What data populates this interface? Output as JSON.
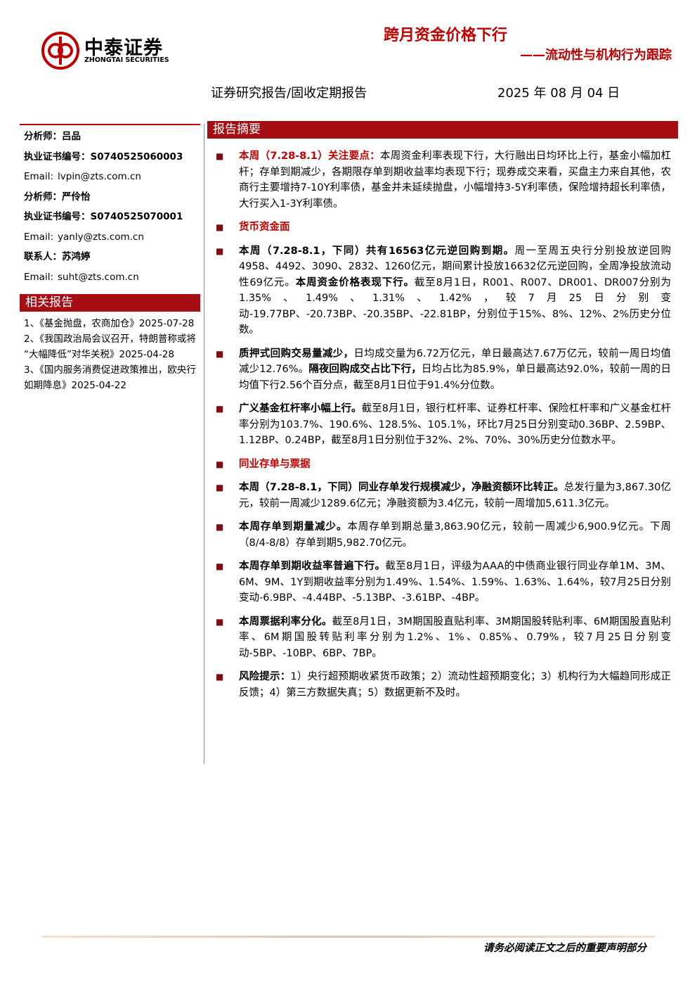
{
  "logo": {
    "name": "中泰证券",
    "sub": "ZHONGTAI SECURITIES"
  },
  "header": {
    "title": "跨月资金价格下行",
    "subtitle": "——流动性与机构行为跟踪",
    "report_type": "证券研究报告/固收定期报告",
    "date": "2025 年 08 月 04 日"
  },
  "sidebar": {
    "contacts": [
      {
        "label": "分析师：",
        "value": "吕品"
      },
      {
        "label": "执业证书编号：",
        "value": "S0740525060003"
      },
      {
        "label": "Email:",
        "value": "lvpin@zts.com.cn"
      },
      {
        "label": "分析师：",
        "value": "严伶怡"
      },
      {
        "label": "执业证书编号：",
        "value": "S0740525070001"
      },
      {
        "label": "Email:",
        "value": "yanly@zts.com.cn"
      },
      {
        "label": "联系人：",
        "value": "苏鸿婷"
      },
      {
        "label": "Email:",
        "value": "suht@zts.com.cn"
      }
    ],
    "related_title": "相关报告",
    "related": [
      "1、《基金抛盘，农商加仓》2025-07-28",
      "2、《我国政治局会议召开，特朗普称或将“大幅降低”对华关税》2025-04-28",
      "3、《国内服务消费促进政策推出，欧央行如期降息》2025-04-22"
    ]
  },
  "summary": {
    "title": "报告摘要",
    "items": [
      {
        "heading": false,
        "runs": [
          {
            "text": "本周（7.28-8.1）关注要点：",
            "bold": true,
            "red": true
          },
          {
            "text": "本周资金利率表现下行，大行融出日均环比上行，基金小幅加杠杆；存单到期减少，各期限存单到期收益率均表现下行；现券成交来看，买盘主力来自其他，农商行主要增持7-10Y利率债，基金并未延续抛盘，小幅增持3-5Y利率债，保险增持超长利率债，大行买入1-3Y利率债。",
            "bold": false,
            "red": false
          }
        ]
      },
      {
        "heading": true,
        "runs": [
          {
            "text": "货币资金面",
            "bold": true,
            "red": true
          }
        ]
      },
      {
        "heading": false,
        "runs": [
          {
            "text": "本周（7.28-8.1，下同）共有16563亿元逆回购到期。",
            "bold": true,
            "red": false
          },
          {
            "text": "周一至周五央行分别投放逆回购4958、4492、3090、2832、1260亿元，期间累计投放16632亿元逆回购，全周净投放流动性69亿元。",
            "bold": false,
            "red": false
          },
          {
            "text": "本周资金价格表现下行。",
            "bold": true,
            "red": false
          },
          {
            "text": "截至8月1日，R001、R007、DR001、DR007分别为1.35%、1.49%、1.31%、1.42%，较7月25日分别变动-19.77BP、-20.73BP、-20.35BP、-22.81BP，分别位于15%、8%、12%、2%历史分位数。",
            "bold": false,
            "red": false
          }
        ]
      },
      {
        "heading": false,
        "runs": [
          {
            "text": "质押式回购交易量减少，",
            "bold": true,
            "red": false
          },
          {
            "text": "日均成交量为6.72万亿元，单日最高达7.67万亿元，较前一周日均值减少12.76%。",
            "bold": false,
            "red": false
          },
          {
            "text": "隔夜回购成交占比下行，",
            "bold": true,
            "red": false
          },
          {
            "text": "日均占比为85.9%，单日最高达92.0%，较前一周的日均值下行2.56个百分点，截至8月1日位于91.4%分位数。",
            "bold": false,
            "red": false
          }
        ]
      },
      {
        "heading": false,
        "runs": [
          {
            "text": "广义基金杠杆率小幅上行。",
            "bold": true,
            "red": false
          },
          {
            "text": "截至8月1日，银行杠杆率、证券杠杆率、保险杠杆率和广义基金杠杆率分别为103.7%、190.6%、128.5%、105.1%，环比7月25日分别变动0.36BP、2.59BP、1.12BP、0.24BP，截至8月1日分别位于32%、2%、70%、30%历史分位数水平。",
            "bold": false,
            "red": false
          }
        ]
      },
      {
        "heading": true,
        "runs": [
          {
            "text": "同业存单与票据",
            "bold": true,
            "red": true
          }
        ]
      },
      {
        "heading": false,
        "runs": [
          {
            "text": "本周（7.28-8.1，下同）同业存单发行规模减少，净融资额环比转正。",
            "bold": true,
            "red": false
          },
          {
            "text": "总发行量为3,867.30亿元，较前一周减少1289.6亿元；净融资额为3.4亿元，较前一周增加5,611.3亿元。",
            "bold": false,
            "red": false
          }
        ]
      },
      {
        "heading": false,
        "runs": [
          {
            "text": "本周存单到期量减少。",
            "bold": true,
            "red": false
          },
          {
            "text": "本周存单到期总量3,863.90亿元，较前一周减少6,900.9亿元。下周（8/4-8/8）存单到期5,982.70亿元。",
            "bold": false,
            "red": false
          }
        ]
      },
      {
        "heading": false,
        "runs": [
          {
            "text": "本周存单到期收益率普遍下行。",
            "bold": true,
            "red": false
          },
          {
            "text": "截至8月1日，评级为AAA的中债商业银行同业存单1M、3M、6M、9M、1Y到期收益率分别为1.49%、1.54%、1.59%、1.63%、1.64%，较7月25日分别变动-6.9BP、-4.44BP、-5.13BP、-3.61BP、-4BP。",
            "bold": false,
            "red": false
          }
        ]
      },
      {
        "heading": false,
        "runs": [
          {
            "text": "本周票据利率分化。",
            "bold": true,
            "red": false
          },
          {
            "text": "截至8月1日，3M期国股直贴利率、3M期国股转贴利率、6M期国股直贴利率、6M期国股转贴利率分别为1.2%、1%、0.85%、0.79%，较7月25日分别变动-5BP、-10BP、6BP、7BP。",
            "bold": false,
            "red": false
          }
        ]
      },
      {
        "heading": false,
        "runs": [
          {
            "text": "风险提示：",
            "bold": true,
            "red": false
          },
          {
            "text": "1）央行超预期收紧货币政策；2）流动性超预期变化；3）机构行为大幅趋同形成正反馈；4）第三方数据失真；5）数据更新不及时。",
            "bold": false,
            "red": false
          }
        ]
      }
    ]
  },
  "footer": {
    "disclaimer": "请务必阅读正文之后的重要声明部分"
  }
}
